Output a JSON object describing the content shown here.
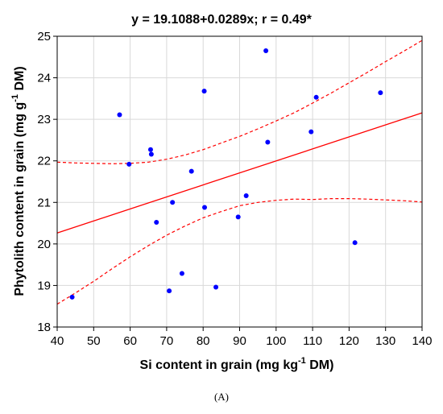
{
  "figure": {
    "panel_label": "(A)"
  },
  "chart_data": {
    "type": "scatter",
    "title": "y = 19.1088+0.0289x; r = 0.49*",
    "xlabel_parts": [
      "Si content in grain (mg kg",
      "-1",
      " DM)"
    ],
    "ylabel_parts": [
      "Phytolith content in grain (mg g",
      "-1",
      " DM)"
    ],
    "xlim": [
      40,
      140
    ],
    "ylim": [
      18,
      25
    ],
    "xticks": [
      40,
      50,
      60,
      70,
      80,
      90,
      100,
      110,
      120,
      130,
      140
    ],
    "yticks": [
      18,
      19,
      20,
      21,
      22,
      23,
      24,
      25
    ],
    "grid": true,
    "colors": {
      "points": "#0000ff",
      "fit": "#ff0000",
      "confidence": "#ff0000",
      "grid": "#d9d9d9"
    },
    "regression": {
      "intercept": 19.1088,
      "slope": 0.0289,
      "r": 0.49
    },
    "confidence_band": {
      "x": [
        40,
        45,
        50,
        55,
        60,
        65,
        70,
        75,
        80,
        85,
        90,
        95,
        100,
        105,
        110,
        115,
        120,
        125,
        130,
        135,
        140
      ],
      "upper": [
        21.97,
        21.95,
        21.94,
        21.93,
        21.94,
        21.97,
        22.04,
        22.14,
        22.27,
        22.43,
        22.59,
        22.77,
        22.96,
        23.16,
        23.39,
        23.63,
        23.88,
        24.13,
        24.39,
        24.64,
        24.9
      ],
      "lower": [
        18.55,
        18.82,
        19.1,
        19.4,
        19.69,
        19.96,
        20.21,
        20.43,
        20.63,
        20.78,
        20.92,
        21.0,
        21.05,
        21.08,
        21.07,
        21.09,
        21.09,
        21.08,
        21.06,
        21.04,
        21.01
      ]
    },
    "series": [
      {
        "points": [
          [
            44.1,
            18.72
          ],
          [
            57.1,
            23.11
          ],
          [
            59.7,
            21.92
          ],
          [
            65.6,
            22.27
          ],
          [
            65.8,
            22.16
          ],
          [
            67.2,
            20.52
          ],
          [
            70.7,
            18.87
          ],
          [
            71.6,
            21.0
          ],
          [
            74.2,
            19.29
          ],
          [
            76.8,
            21.75
          ],
          [
            80.3,
            23.68
          ],
          [
            80.4,
            20.88
          ],
          [
            83.5,
            18.96
          ],
          [
            89.6,
            20.65
          ],
          [
            91.8,
            21.16
          ],
          [
            97.2,
            24.65
          ],
          [
            97.7,
            22.45
          ],
          [
            109.6,
            22.7
          ],
          [
            111.0,
            23.53
          ],
          [
            121.6,
            20.03
          ],
          [
            128.6,
            23.64
          ]
        ]
      }
    ]
  }
}
